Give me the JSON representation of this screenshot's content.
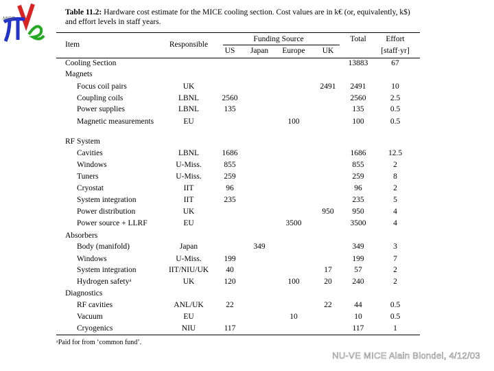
{
  "logo": {
    "text": "MICE"
  },
  "caption": {
    "label": "Table 11.2:",
    "text": "Hardware cost estimate for the MICE cooling section. Cost values are in k€ (or, equivalently, k$) and effort levels in staff years."
  },
  "table": {
    "header": {
      "item": "Item",
      "responsible": "Responsible",
      "funding": "Funding Source",
      "sources": [
        "US",
        "Japan",
        "Europe",
        "UK"
      ],
      "total": "Total",
      "effort": "Effort",
      "effort_unit": "[staff·yr]"
    },
    "summary": [
      "Cooling Section",
      null,
      null,
      null,
      null,
      null,
      "13883",
      "67"
    ],
    "groups": [
      {
        "name": "Magnets",
        "rows": [
          [
            "Focus coil pairs",
            "UK",
            null,
            null,
            null,
            "2491",
            "2491",
            "10"
          ],
          [
            "Coupling coils",
            "LBNL",
            "2560",
            null,
            null,
            null,
            "2560",
            "2.5"
          ],
          [
            "Power supplies",
            "LBNL",
            "135",
            null,
            null,
            null,
            "135",
            "0.5"
          ],
          [
            "Magnetic measurements",
            "EU",
            null,
            null,
            "100",
            null,
            "100",
            "0.5"
          ]
        ]
      },
      {
        "name": "RF System",
        "rows": [
          [
            "Cavities",
            "LBNL",
            "1686",
            null,
            null,
            null,
            "1686",
            "12.5"
          ],
          [
            "Windows",
            "U-Miss.",
            "855",
            null,
            null,
            null,
            "855",
            "2"
          ],
          [
            "Tuners",
            "U-Miss.",
            "259",
            null,
            null,
            null,
            "259",
            "8"
          ],
          [
            "Cryostat",
            "IIT",
            "96",
            null,
            null,
            null,
            "96",
            "2"
          ],
          [
            "System integration",
            "IIT",
            "235",
            null,
            null,
            null,
            "235",
            "5"
          ],
          [
            "Power distribution",
            "UK",
            null,
            null,
            null,
            "950",
            "950",
            "4"
          ],
          [
            "Power source + LLRF",
            "EU",
            null,
            null,
            "3500",
            null,
            "3500",
            "4"
          ]
        ]
      },
      {
        "name": "Absorbers",
        "rows": [
          [
            "Body (manifold)",
            "Japan",
            null,
            "349",
            null,
            null,
            "349",
            "3"
          ],
          [
            "Windows",
            "U-Miss.",
            "199",
            null,
            null,
            null,
            "199",
            "7"
          ],
          [
            "System integration",
            "IIT/NIU/UK",
            "40",
            null,
            null,
            "17",
            "57",
            "2"
          ],
          [
            "Hydrogen safetyᵃ",
            "UK",
            "120",
            null,
            "100",
            "20",
            "240",
            "2"
          ]
        ]
      },
      {
        "name": "Diagnostics",
        "rows": [
          [
            "RF cavities",
            "ANL/UK",
            "22",
            null,
            null,
            "22",
            "44",
            "0.5"
          ],
          [
            "Vacuum",
            "EU",
            null,
            null,
            "10",
            null,
            "10",
            "0.5"
          ],
          [
            "Cryogenics",
            "NIU",
            "117",
            null,
            null,
            null,
            "117",
            "1"
          ]
        ]
      }
    ],
    "footnote": "ᵃPaid for from ‘common fund’."
  },
  "footer": "NU-VE MICE Alain Blondel, 4/12/03"
}
